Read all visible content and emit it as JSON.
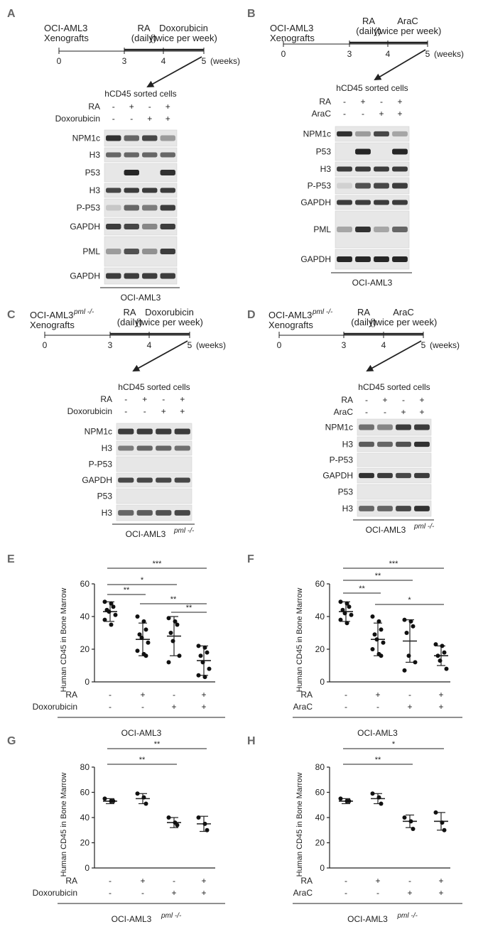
{
  "panels": [
    {
      "letter": "A",
      "timeline": {
        "model_lines": [
          "OCI-AML3",
          "Xenografts"
        ],
        "label_1": [
          "RA",
          "(daily)"
        ],
        "label_2": [
          "Doxorubicin",
          "(twice per week)"
        ],
        "ticks": [
          "0",
          "3",
          "4",
          "5"
        ],
        "unit": "(weeks)"
      },
      "blot": {
        "header": "hCD45 sorted cells",
        "conditions": [
          {
            "name": "RA",
            "signs": [
              "-",
              "+",
              "-",
              "+"
            ]
          },
          {
            "name": "Doxorubicin",
            "signs": [
              "-",
              "-",
              "+",
              "+"
            ]
          }
        ],
        "rows": [
          {
            "label": "NPM1c",
            "intensity": [
              0.85,
              0.6,
              0.75,
              0.35
            ]
          },
          {
            "label": "H3",
            "intensity": [
              0.6,
              0.6,
              0.6,
              0.6
            ]
          },
          {
            "label": "P53",
            "intensity": [
              0,
              0.9,
              0,
              0.85
            ]
          },
          {
            "label": "H3",
            "intensity": [
              0.75,
              0.8,
              0.8,
              0.8
            ]
          },
          {
            "label": "P-P53",
            "intensity": [
              0.15,
              0.6,
              0.5,
              0.8
            ]
          },
          {
            "label": "GAPDH",
            "intensity": [
              0.8,
              0.75,
              0.45,
              0.8
            ]
          },
          {
            "label": "PML",
            "intensity": [
              0.35,
              0.7,
              0.4,
              0.8
            ]
          },
          {
            "label": "GAPDH",
            "intensity": [
              0.8,
              0.8,
              0.8,
              0.8
            ]
          }
        ],
        "cell_line": "OCI-AML3",
        "cell_line_sup": ""
      }
    },
    {
      "letter": "B",
      "timeline": {
        "model_lines": [
          "OCI-AML3",
          "Xenografts"
        ],
        "label_1": [
          "RA",
          "(daily)"
        ],
        "label_2": [
          "AraC",
          "(twice per week)"
        ],
        "ticks": [
          "0",
          "3",
          "4",
          "5"
        ],
        "unit": "(weeks)"
      },
      "blot": {
        "header": "hCD45 sorted cells",
        "conditions": [
          {
            "name": "RA",
            "signs": [
              "-",
              "+",
              "-",
              "+"
            ]
          },
          {
            "name": "AraC",
            "signs": [
              "-",
              "-",
              "+",
              "+"
            ]
          }
        ],
        "rows": [
          {
            "label": "NPM1c",
            "intensity": [
              0.85,
              0.35,
              0.75,
              0.3
            ]
          },
          {
            "label": "P53",
            "intensity": [
              0,
              0.9,
              0,
              0.9
            ]
          },
          {
            "label": "H3",
            "intensity": [
              0.8,
              0.8,
              0.8,
              0.8
            ]
          },
          {
            "label": "P-P53",
            "intensity": [
              0.1,
              0.7,
              0.75,
              0.8
            ]
          },
          {
            "label": "GAPDH",
            "intensity": [
              0.8,
              0.8,
              0.8,
              0.8
            ]
          },
          {
            "label": "PML",
            "intensity": [
              0.3,
              0.85,
              0.3,
              0.6
            ]
          },
          {
            "label": "GAPDH",
            "intensity": [
              0.9,
              0.9,
              0.9,
              0.9
            ]
          }
        ],
        "cell_line": "OCI-AML3",
        "cell_line_sup": ""
      }
    },
    {
      "letter": "C",
      "timeline": {
        "model_lines": [
          "OCI-AML3",
          "Xenografts"
        ],
        "model_sup": "pml -/-",
        "label_1": [
          "RA",
          "(daily)"
        ],
        "label_2": [
          "Doxorubicin",
          "(twice per week)"
        ],
        "ticks": [
          "0",
          "3",
          "4",
          "5"
        ],
        "unit": "(weeks)"
      },
      "blot": {
        "header": "hCD45 sorted cells",
        "conditions": [
          {
            "name": "RA",
            "signs": [
              "-",
              "+",
              "-",
              "+"
            ]
          },
          {
            "name": "Doxorubicin",
            "signs": [
              "-",
              "-",
              "+",
              "+"
            ]
          }
        ],
        "rows": [
          {
            "label": "NPM1c",
            "intensity": [
              0.8,
              0.8,
              0.8,
              0.8
            ]
          },
          {
            "label": "H3",
            "intensity": [
              0.5,
              0.6,
              0.6,
              0.55
            ]
          },
          {
            "label": "P-P53",
            "intensity": [
              0,
              0,
              0,
              0
            ]
          },
          {
            "label": "GAPDH",
            "intensity": [
              0.75,
              0.75,
              0.75,
              0.75
            ]
          },
          {
            "label": "P53",
            "intensity": [
              0,
              0,
              0,
              0
            ]
          },
          {
            "label": "H3",
            "intensity": [
              0.6,
              0.65,
              0.7,
              0.75
            ]
          }
        ],
        "cell_line": "OCI-AML3",
        "cell_line_sup": "pml -/-"
      }
    },
    {
      "letter": "D",
      "timeline": {
        "model_lines": [
          "OCI-AML3",
          "Xenografts"
        ],
        "model_sup": "pml -/-",
        "label_1": [
          "RA",
          "(daily)"
        ],
        "label_2": [
          "AraC",
          "(twice per week)"
        ],
        "ticks": [
          "0",
          "3",
          "4",
          "5"
        ],
        "unit": "(weeks)"
      },
      "blot": {
        "header": "hCD45 sorted cells",
        "conditions": [
          {
            "name": "RA",
            "signs": [
              "-",
              "+",
              "-",
              "+"
            ]
          },
          {
            "name": "AraC",
            "signs": [
              "-",
              "-",
              "+",
              "+"
            ]
          }
        ],
        "rows": [
          {
            "label": "NPM1c",
            "intensity": [
              0.55,
              0.45,
              0.8,
              0.8
            ]
          },
          {
            "label": "H3",
            "intensity": [
              0.65,
              0.6,
              0.7,
              0.85
            ]
          },
          {
            "label": "P-P53",
            "intensity": [
              0,
              0,
              0,
              0
            ]
          },
          {
            "label": "GAPDH",
            "intensity": [
              0.85,
              0.8,
              0.75,
              0.8
            ]
          },
          {
            "label": "P53",
            "intensity": [
              0,
              0,
              0,
              0
            ]
          },
          {
            "label": "H3",
            "intensity": [
              0.6,
              0.6,
              0.75,
              0.85
            ]
          }
        ],
        "cell_line": "OCI-AML3",
        "cell_line_sup": "pml -/-"
      }
    }
  ],
  "chart_data": [
    {
      "panel": "E",
      "type": "scatter",
      "ylabel": "Human CD45 in Bone Marrow",
      "ylim": [
        0,
        60
      ],
      "yticks": [
        0,
        20,
        40,
        60
      ],
      "conditions": [
        {
          "name": "RA",
          "signs": [
            "-",
            "+",
            "-",
            "+"
          ]
        },
        {
          "name": "Doxorubicin",
          "signs": [
            "-",
            "-",
            "+",
            "+"
          ]
        }
      ],
      "groups": [
        {
          "mean": 43,
          "sd": 6,
          "points": [
            49,
            48,
            46,
            44,
            43,
            41,
            38,
            35
          ]
        },
        {
          "mean": 26,
          "sd": 10,
          "points": [
            40,
            37,
            32,
            29,
            27,
            24,
            19,
            17,
            16
          ]
        },
        {
          "mean": 28,
          "sd": 12,
          "points": [
            39,
            37,
            35,
            30,
            25,
            16,
            12
          ]
        },
        {
          "mean": 13,
          "sd": 9,
          "points": [
            22,
            21,
            18,
            16,
            12,
            8,
            4,
            3
          ]
        }
      ],
      "significance": [
        {
          "from": 0,
          "to": 3,
          "label": "***"
        },
        {
          "from": 0,
          "to": 2,
          "label": "*"
        },
        {
          "from": 0,
          "to": 1,
          "label": "**"
        },
        {
          "from": 1,
          "to": 3,
          "label": "**"
        },
        {
          "from": 2,
          "to": 3,
          "label": "**"
        }
      ],
      "cell_line": "OCI-AML3",
      "cell_line_sup": ""
    },
    {
      "panel": "F",
      "type": "scatter",
      "ylabel": "Human CD45 in Bone Marrow",
      "ylim": [
        0,
        60
      ],
      "yticks": [
        0,
        20,
        40,
        60
      ],
      "conditions": [
        {
          "name": "RA",
          "signs": [
            "-",
            "+",
            "-",
            "+"
          ]
        },
        {
          "name": "AraC",
          "signs": [
            "-",
            "-",
            "+",
            "+"
          ]
        }
      ],
      "groups": [
        {
          "mean": 43,
          "sd": 6,
          "points": [
            49,
            48,
            46,
            44,
            42,
            41,
            38,
            36
          ]
        },
        {
          "mean": 26,
          "sd": 10,
          "points": [
            40,
            37,
            32,
            29,
            26,
            24,
            20,
            17,
            16
          ]
        },
        {
          "mean": 25,
          "sd": 13,
          "points": [
            38,
            37,
            34,
            30,
            16,
            12,
            7
          ]
        },
        {
          "mean": 16,
          "sd": 6,
          "points": [
            23,
            22,
            18,
            16,
            13,
            8
          ]
        }
      ],
      "significance": [
        {
          "from": 0,
          "to": 3,
          "label": "***"
        },
        {
          "from": 0,
          "to": 2,
          "label": "**"
        },
        {
          "from": 0,
          "to": 1,
          "label": "**"
        },
        {
          "from": 1,
          "to": 3,
          "label": "*"
        }
      ],
      "cell_line": "OCI-AML3",
      "cell_line_sup": ""
    },
    {
      "panel": "G",
      "type": "scatter",
      "ylabel": "Human CD45 in Bone Marrow",
      "ylim": [
        0,
        80
      ],
      "yticks": [
        0,
        20,
        40,
        60,
        80
      ],
      "conditions": [
        {
          "name": "RA",
          "signs": [
            "-",
            "+",
            "-",
            "+"
          ]
        },
        {
          "name": "Doxorubicin",
          "signs": [
            "-",
            "-",
            "+",
            "+"
          ]
        }
      ],
      "groups": [
        {
          "mean": 53,
          "sd": 2,
          "points": [
            55,
            53,
            53
          ]
        },
        {
          "mean": 55,
          "sd": 4,
          "points": [
            59,
            56,
            51
          ]
        },
        {
          "mean": 36,
          "sd": 4,
          "points": [
            40,
            36,
            34
          ]
        },
        {
          "mean": 35,
          "sd": 6,
          "points": [
            40,
            35,
            30
          ]
        }
      ],
      "significance": [
        {
          "from": 0,
          "to": 3,
          "label": "**"
        },
        {
          "from": 0,
          "to": 2,
          "label": "**"
        }
      ],
      "cell_line": "OCI-AML3",
      "cell_line_sup": "pml -/-"
    },
    {
      "panel": "H",
      "type": "scatter",
      "ylabel": "Human CD45 in Bone Marrow",
      "ylim": [
        0,
        80
      ],
      "yticks": [
        0,
        20,
        40,
        60,
        80
      ],
      "conditions": [
        {
          "name": "RA",
          "signs": [
            "-",
            "+",
            "-",
            "+"
          ]
        },
        {
          "name": "AraC",
          "signs": [
            "-",
            "-",
            "+",
            "+"
          ]
        }
      ],
      "groups": [
        {
          "mean": 53,
          "sd": 2,
          "points": [
            55,
            53,
            53
          ]
        },
        {
          "mean": 55,
          "sd": 4,
          "points": [
            59,
            56,
            51
          ]
        },
        {
          "mean": 37,
          "sd": 5,
          "points": [
            40,
            37,
            31
          ]
        },
        {
          "mean": 37,
          "sd": 7,
          "points": [
            44,
            36,
            30
          ]
        }
      ],
      "significance": [
        {
          "from": 0,
          "to": 3,
          "label": "*"
        },
        {
          "from": 0,
          "to": 2,
          "label": "**"
        }
      ],
      "cell_line": "OCI-AML3",
      "cell_line_sup": "pml -/-"
    }
  ]
}
